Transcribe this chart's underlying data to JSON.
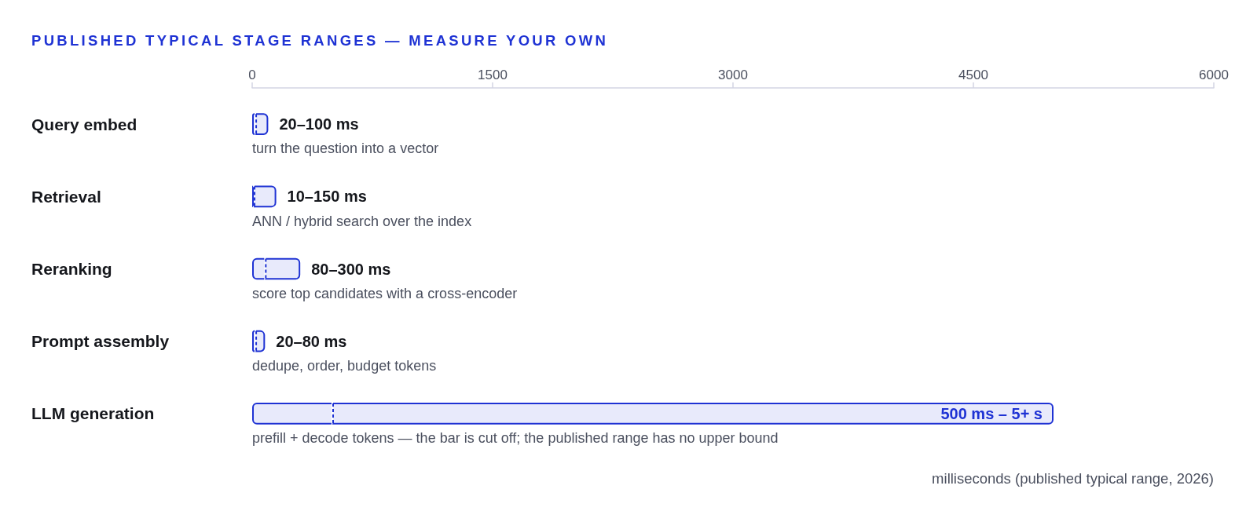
{
  "chart_data": {
    "type": "bar",
    "orientation": "horizontal",
    "stacked": true,
    "title": "PUBLISHED TYPICAL STAGE RANGES — MEASURE YOUR OWN",
    "xlabel": "milliseconds (published typical range, 2026)",
    "categories": [
      "Query embed",
      "Retrieval",
      "Reranking",
      "Prompt assembly",
      "LLM generation"
    ],
    "series": [
      {
        "color": "#1f33d4",
        "values": [
          20,
          10,
          80,
          20,
          500
        ]
      },
      {
        "color": "#1f33d4",
        "values": [
          80,
          140,
          220,
          60,
          4500
        ]
      }
    ],
    "xlim": [
      0,
      6000
    ],
    "xticks": [
      0,
      1500,
      3000,
      4500,
      6000
    ],
    "annotations": [
      {
        "text": "20–100 ms",
        "x": 100,
        "y": "Query embed"
      },
      {
        "text": "10–150 ms",
        "x": 150,
        "y": "Retrieval"
      },
      {
        "text": "80–300 ms",
        "x": 300,
        "y": "Reranking"
      },
      {
        "text": "20–80 ms",
        "x": 80,
        "y": "Prompt assembly"
      },
      {
        "text": "500 ms – 5+ s",
        "x": 5000,
        "y": "LLM generation"
      },
      "turn the question into a vector",
      "ANN / hybrid search over the index",
      "score top candidates with a cross-encoder",
      "dedupe, order, budget tokens",
      "prefill + decode tokens — the bar is cut off; the published range has no upper bound"
    ]
  }
}
